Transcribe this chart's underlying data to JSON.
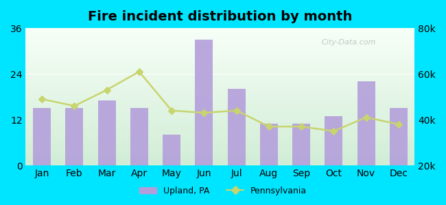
{
  "title": "Fire incident distribution by month",
  "months": [
    "Jan",
    "Feb",
    "Mar",
    "Apr",
    "May",
    "Jun",
    "Jul",
    "Aug",
    "Sep",
    "Oct",
    "Nov",
    "Dec"
  ],
  "upland_values": [
    15,
    15,
    17,
    15,
    8,
    33,
    20,
    11,
    11,
    13,
    22,
    15
  ],
  "pa_values": [
    49000,
    46000,
    53000,
    61000,
    44000,
    43000,
    44000,
    37000,
    37000,
    35000,
    41000,
    38000
  ],
  "bar_color": "#b39ddb",
  "line_color": "#c8d46e",
  "line_marker": "D",
  "background_outer": "#00e5ff",
  "left_ylim": [
    0,
    36
  ],
  "left_yticks": [
    0,
    12,
    24,
    36
  ],
  "right_ylim": [
    20000,
    80000
  ],
  "right_yticks": [
    20000,
    40000,
    60000,
    80000
  ],
  "right_yticklabels": [
    "20k",
    "40k",
    "60k",
    "80k"
  ],
  "title_fontsize": 14,
  "tick_fontsize": 10,
  "legend_upland": "Upland, PA",
  "legend_pa": "Pennsylvania",
  "watermark": "City-Data.com"
}
